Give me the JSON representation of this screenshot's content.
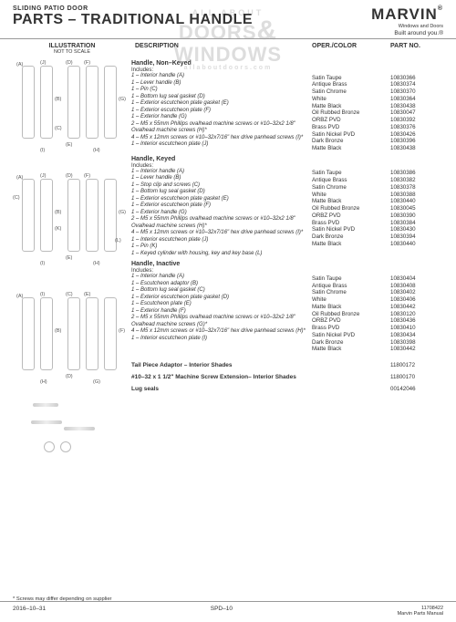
{
  "watermark": {
    "line1": "ALL ABOUT",
    "main1": "DOORS",
    "amp": "&",
    "main2": "WINDOWS",
    "sub": "allaboutdoors.com"
  },
  "header": {
    "pretitle": "SLIDING PATIO DOOR",
    "title": "PARTS – TRADITIONAL HANDLE",
    "brand": "MARVIN",
    "brand_reg": "®",
    "brand_sub": "Windows and Doors",
    "brand_tag": "Built around you.®"
  },
  "columns": {
    "illustration": "ILLUSTRATION",
    "nts": "NOT TO SCALE",
    "description": "DESCRIPTION",
    "oper": "OPER./COLOR",
    "part": "PART NO."
  },
  "sections": [
    {
      "title": "Handle, Non–Keyed",
      "includes_label": "Includes:",
      "includes": [
        "1 – Interior handle (A)",
        "1 – Lever handle (B)",
        "1 – Pin (C)",
        "1 – Bottom lug seal gasket (D)",
        "1 – Exterior escutcheon plate gasket (E)",
        "1 – Exterior escutcheon plate (F)",
        "1 – Exterior handle (G)",
        "2 – M5 x 55mm Phillips ovalhead machine screws or #10–32x2 1/8\" Ovalhead machine screws (H)*",
        "4 – M5 x 12mm screws or #10–32x7/16\" hex drive panhead screws (I)*",
        "1 – Interior escutcheon plate (J)"
      ],
      "variants": [
        {
          "color": "Satin Taupe",
          "part": "10830366"
        },
        {
          "color": "Antique Brass",
          "part": "10830374"
        },
        {
          "color": "Satin Chrome",
          "part": "10830370"
        },
        {
          "color": "White",
          "part": "10830364"
        },
        {
          "color": "Matte Black",
          "part": "10830438"
        },
        {
          "color": "Oil Rubbed Bronze",
          "part": "10830047"
        },
        {
          "color": "ORBZ PVD",
          "part": "10830392"
        },
        {
          "color": "Brass PVD",
          "part": "10830376"
        },
        {
          "color": "Satin Nickel PVD",
          "part": "10830426"
        },
        {
          "color": "Dark Bronze",
          "part": "10830396"
        },
        {
          "color": "Matte Black",
          "part": "10830438"
        }
      ]
    },
    {
      "title": "Handle, Keyed",
      "includes_label": "Includes:",
      "includes": [
        "1 – Interior handle (A)",
        "1 – Lever handle (B)",
        "1 – Stop clip and screws (C)",
        "1 – Bottom lug seal gasket (D)",
        "1 – Exterior escutcheon plate gasket (E)",
        "1 – Exterior escutcheon plate (F)",
        "1 – Exterior handle (G)",
        "2 – M5 x 55mm Phillips ovalhead machine screws or #10–32x2 1/8\" Ovalhead machine screws (H)*",
        "4 – M5 x 12mm screws or #10–32x7/16\" hex drive panhead screws (I)*",
        "1 – Interior escutcheon plate (J)",
        "1 – Pin (K)",
        "1 – Keyed cylinder with housing, key and key base (L)"
      ],
      "variants": [
        {
          "color": "Satin Taupe",
          "part": "10830386"
        },
        {
          "color": "Antique Brass",
          "part": "10830382"
        },
        {
          "color": "Satin Chrome",
          "part": "10830378"
        },
        {
          "color": "White",
          "part": "10830388"
        },
        {
          "color": "Matte Black",
          "part": "10830440"
        },
        {
          "color": "Oil Rubbed Bronze",
          "part": "10830045"
        },
        {
          "color": "ORBZ PVD",
          "part": "10830390"
        },
        {
          "color": "Brass PVD",
          "part": "10830384"
        },
        {
          "color": "Satin Nickel PVD",
          "part": "10830430"
        },
        {
          "color": "Dark Bronze",
          "part": "10830394"
        },
        {
          "color": "Matte Black",
          "part": "10830440"
        }
      ]
    },
    {
      "title": "Handle, Inactive",
      "includes_label": "Includes:",
      "includes": [
        "1 – Interior handle (A)",
        "1 – Escutcheon adaptor (B)",
        "1 – Bottom lug seal gasket (C)",
        "1 – Exterior escutcheon plate gasket (D)",
        "1 – Escutcheon plate (E)",
        "1 – Exterior handle (F)",
        "2 – M5 x 55mm Phillips ovalhead machine screws or #10–32x2 1/8\" Ovalhead machine screws (G)*",
        "4 – M5 x 12mm screws or #10–32x7/16\" hex drive panhead screws (H)*",
        "1 – Interior escutcheon plate (I)"
      ],
      "variants": [
        {
          "color": "Satin Taupe",
          "part": "10830404"
        },
        {
          "color": "Antique Brass",
          "part": "10830408"
        },
        {
          "color": "Satin Chrome",
          "part": "10830402"
        },
        {
          "color": "White",
          "part": "10830406"
        },
        {
          "color": "Matte Black",
          "part": "10830442"
        },
        {
          "color": "Oil Rubbed Bronze",
          "part": "10830120"
        },
        {
          "color": "ORBZ PVD",
          "part": "10830436"
        },
        {
          "color": "Brass PVD",
          "part": "10830410"
        },
        {
          "color": "Satin Nickel PVD",
          "part": "10830434"
        },
        {
          "color": "Dark Bronze",
          "part": "10830398"
        },
        {
          "color": "Matte Black",
          "part": "10830442"
        }
      ]
    }
  ],
  "simple_sections": [
    {
      "name": "Tail Piece Adaptor – Interior Shades",
      "part": "11800172"
    },
    {
      "name": "#10–32 x 1 1/2\" Machine Screw Extension– Interior Shades",
      "part": "11800170"
    },
    {
      "name": "Lug seals",
      "part": "00142046"
    }
  ],
  "footnote": "*    Screws may differ depending on supplier",
  "footer": {
    "date": "2016–10–31",
    "page": "SPD–10",
    "filenum": "11708422",
    "filetitle": "Marvin Parts Manual"
  }
}
